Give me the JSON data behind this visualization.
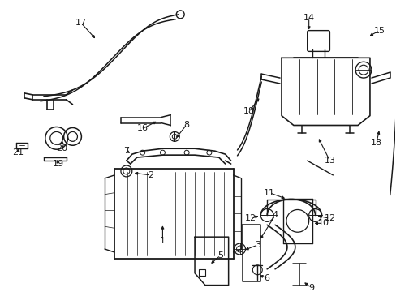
{
  "bg_color": "#ffffff",
  "line_color": "#1a1a1a",
  "fig_width": 4.89,
  "fig_height": 3.6,
  "dpi": 100,
  "lw": 1.0
}
